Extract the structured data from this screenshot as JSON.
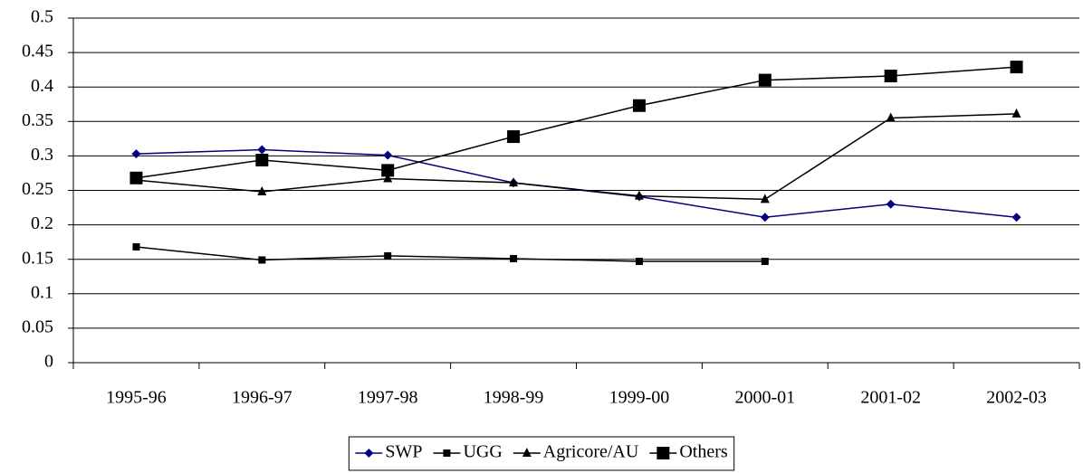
{
  "chart_data": {
    "type": "line",
    "categories": [
      "1995-96",
      "1996-97",
      "1997-98",
      "1998-99",
      "1999-00",
      "2000-01",
      "2001-02",
      "2002-03"
    ],
    "series": [
      {
        "name": "SWP",
        "color": "#000080",
        "marker": "diamond",
        "values": [
          0.303,
          0.309,
          0.301,
          0.261,
          0.241,
          0.211,
          0.23,
          0.211
        ]
      },
      {
        "name": "UGG",
        "color": "#000000",
        "marker": "square",
        "values": [
          0.168,
          0.149,
          0.155,
          0.151,
          0.147,
          0.147,
          null,
          null
        ]
      },
      {
        "name": "Agricore/AU",
        "color": "#000000",
        "marker": "triangle",
        "values": [
          0.265,
          0.248,
          0.267,
          0.261,
          0.242,
          0.237,
          0.355,
          0.361
        ]
      },
      {
        "name": "Others",
        "color": "#000000",
        "marker": "big-square",
        "values": [
          0.268,
          0.294,
          0.279,
          0.328,
          0.373,
          0.41,
          0.416,
          0.429
        ]
      }
    ],
    "ylim": [
      0,
      0.5
    ],
    "yticks": [
      0,
      0.05,
      0.1,
      0.15,
      0.2,
      0.25,
      0.3,
      0.35,
      0.4,
      0.45,
      0.5
    ],
    "grid": true,
    "legend": "bottom"
  }
}
